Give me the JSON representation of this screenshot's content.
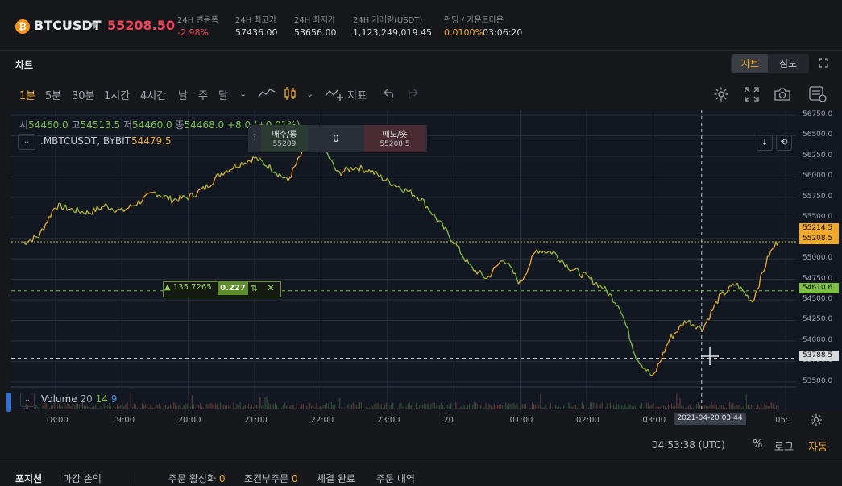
{
  "ticker": {
    "symbol": "BTCUSDT",
    "last_price": "55208.50",
    "stats": [
      {
        "label": "24H 변동폭",
        "value": "-2.98%",
        "color": "#f0435a"
      },
      {
        "label": "24H 최고가",
        "value": "57436.00",
        "color": "#d6d7da"
      },
      {
        "label": "24H 최저가",
        "value": "53656.00",
        "color": "#d6d7da"
      },
      {
        "label": "24H 거래량(USDT)",
        "value": "1,123,249,019.45",
        "color": "#d6d7da"
      },
      {
        "label": "펀딩 / 카운트다운",
        "value": "0.0100%",
        "value2": "03:06:20",
        "color": "#f0a82d"
      }
    ]
  },
  "panel": {
    "title": "차트",
    "views": [
      {
        "label": "자트",
        "active": true
      },
      {
        "label": "심도",
        "active": false
      }
    ]
  },
  "toolbar": {
    "intervals": [
      {
        "label": "1분",
        "active": true
      },
      {
        "label": "5분",
        "active": false
      },
      {
        "label": "30분",
        "active": false
      },
      {
        "label": "1시간",
        "active": false
      },
      {
        "label": "4시간",
        "active": false
      },
      {
        "label": "날",
        "active": false
      },
      {
        "label": "주",
        "active": false
      },
      {
        "label": "달",
        "active": false
      }
    ],
    "indicators_label": "지표"
  },
  "chart": {
    "ohlc": {
      "o_label": "시",
      "o": "54460.0",
      "h_label": "고",
      "h": "54513.5",
      "l_label": "저",
      "l": "54460.0",
      "c_label": "종",
      "c": "54468.0",
      "change": "+8.0",
      "change_pct": "(+0.01%)"
    },
    "series_name": ".MBTCUSDT, BYBIT",
    "series_last": "54479.5",
    "trade_widget": {
      "buy_label": "매수/롱",
      "buy_price": "55209",
      "qty": "0",
      "sell_label": "매도/숏",
      "sell_price": "55208.5"
    },
    "position": {
      "entry": "▲ 135.7265",
      "qty": "0.227"
    },
    "price_tags": [
      {
        "value": "55214.5",
        "bg": "#f0a82d"
      },
      {
        "value": "55208.5",
        "bg": "#f0a82d"
      },
      {
        "value": "54610.6",
        "bg": "#7bc043"
      },
      {
        "value": "53788.5",
        "bg": "#d8d9dc"
      }
    ],
    "crosshair_date": "2021-04-20   03:44",
    "volume": {
      "label": "Volume",
      "v1": "20",
      "v2": "14",
      "v3": "9"
    },
    "colors": {
      "up": "#f0a82d",
      "down": "#7bc043",
      "grid": "#2a2f3c",
      "bg": "#131722"
    }
  },
  "chart_data": {
    "type": "line",
    "title": "",
    "xlabel": "",
    "ylabel": "",
    "x_ticks": [
      "18:00",
      "19:00",
      "20:00",
      "21:00",
      "22:00",
      "23:00",
      "20",
      "01:00",
      "02:00",
      "03:00",
      "05:"
    ],
    "y_ticks": [
      "56750.0",
      "56500.0",
      "56250.0",
      "56000.0",
      "55750.0",
      "55500.0",
      "55250.0",
      "55000.0",
      "54750.0",
      "54500.0",
      "54250.0",
      "54000.0",
      "53750.0",
      "53500.0"
    ],
    "ylim": [
      53400,
      56780
    ],
    "series": [
      {
        "x": [
          "17:30",
          "17:45",
          "18:00",
          "18:15",
          "18:30",
          "18:45",
          "19:00",
          "19:15",
          "19:30",
          "19:45",
          "20:00",
          "20:15",
          "20:30",
          "20:45",
          "21:00",
          "21:15",
          "21:30",
          "21:45",
          "22:00",
          "22:15",
          "22:30",
          "22:45",
          "23:00",
          "23:15",
          "23:30",
          "23:45",
          "00:00",
          "00:15",
          "00:30",
          "00:45",
          "01:00",
          "01:15",
          "01:30",
          "01:45",
          "02:00",
          "02:15",
          "02:30",
          "02:45",
          "03:00",
          "03:15",
          "03:30",
          "03:45",
          "04:00",
          "04:15",
          "04:30",
          "04:45",
          "04:53"
        ],
        "values": [
          55190,
          55280,
          55650,
          55600,
          55560,
          55650,
          55580,
          55690,
          55810,
          55720,
          55750,
          55860,
          56050,
          56150,
          56230,
          56110,
          55950,
          56350,
          56420,
          56040,
          56120,
          56070,
          55950,
          55850,
          55740,
          55480,
          55210,
          54900,
          54760,
          55010,
          54700,
          55110,
          55080,
          54890,
          54780,
          54650,
          54420,
          53800,
          53550,
          54020,
          54250,
          54150,
          54530,
          54700,
          54480,
          55050,
          55210
        ]
      }
    ],
    "price_lines": [
      55208.5,
      54610.6,
      53788.5
    ]
  },
  "bottom": {
    "clock": "04:53:38 (UTC)",
    "options": [
      {
        "label": "%",
        "active": false
      },
      {
        "label": "로그",
        "active": false
      },
      {
        "label": "자동",
        "active": true
      }
    ],
    "tabs": [
      {
        "label": "포지션",
        "count": "",
        "active": true
      },
      {
        "label": "마감 손익",
        "count": "",
        "active": false
      },
      {
        "label": "주문 활성화",
        "count": "0",
        "active": false
      },
      {
        "label": "조건부주문",
        "count": "0",
        "active": false
      },
      {
        "label": "체결 완료",
        "count": "",
        "active": false
      },
      {
        "label": "주문 내역",
        "count": "",
        "active": false
      }
    ]
  }
}
